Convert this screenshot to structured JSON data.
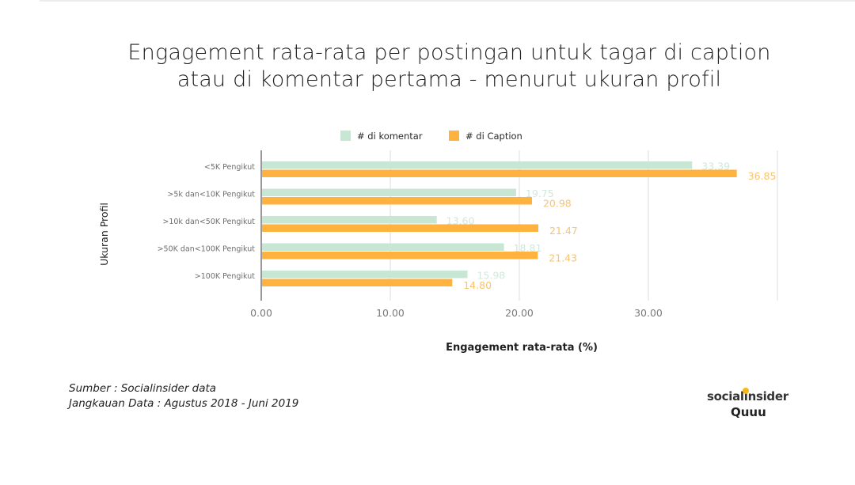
{
  "title": {
    "line1": "Engagement rata-rata per postingan untuk tagar di caption",
    "line2": "atau di komentar pertama - menurut ukuran profil"
  },
  "source": {
    "line1": "Sumber : Socialinsider data",
    "line2": "Jangkauan Data : Agustus 2018 - Juni 2019"
  },
  "logo": {
    "brand": "socialinsider",
    "partner": "Quuu"
  },
  "colors": {
    "komentar": "#c8e6d4",
    "caption": "#ffb23d",
    "komentar_label": "#cfe9dc",
    "caption_label": "#f8c46e",
    "grid": "#dcdcdc",
    "axis": "#999999",
    "tick": "#7a7a7a"
  },
  "chart_data": {
    "type": "bar",
    "orientation": "horizontal",
    "categories": [
      [
        "<5K",
        "Pengikut"
      ],
      [
        ">5k dan<10K",
        "Pengikut"
      ],
      [
        ">10k dan<50K",
        "Pengikut"
      ],
      [
        ">50K dan<100K",
        "Pengikut"
      ],
      [
        ">100K",
        "Pengikut"
      ]
    ],
    "series": [
      {
        "name": "# di komentar",
        "values": [
          33.39,
          19.75,
          13.6,
          18.81,
          15.98
        ]
      },
      {
        "name": "# di Caption",
        "values": [
          36.85,
          20.98,
          21.47,
          21.43,
          14.8
        ]
      }
    ],
    "value_labels": [
      [
        "33.39",
        "19.75",
        "13.60",
        "18.81",
        "15.98"
      ],
      [
        "36.85",
        "20.98",
        "21.47",
        "21.43",
        "14.80"
      ]
    ],
    "xlim": [
      0,
      40
    ],
    "xticks": [
      0,
      10,
      20,
      30
    ],
    "xtick_labels": [
      "0.00",
      "10.00",
      "20.00",
      "30.00"
    ],
    "xlabel": "Engagement rata-rata (%)",
    "ylabel": "Ukuran Profil",
    "legend_position": "top",
    "grid": true
  }
}
